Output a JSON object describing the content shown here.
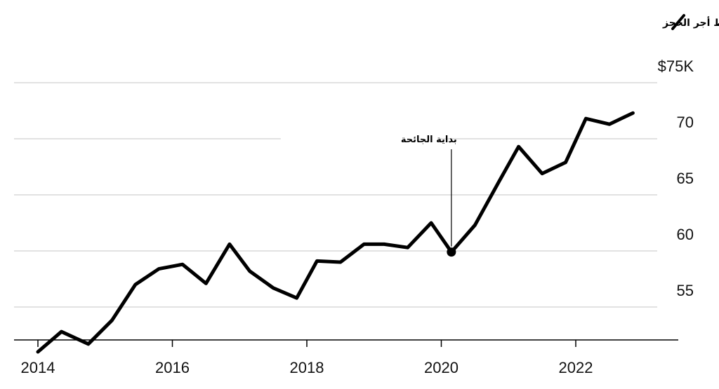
{
  "chart_data": {
    "type": "line",
    "legend": {
      "label": "متوسط أجر الحجز",
      "placement": "top-right"
    },
    "series": [
      {
        "name": "متوسط أجر الحجز",
        "points": [
          [
            2014.0,
            51.0
          ],
          [
            2014.35,
            52.8
          ],
          [
            2014.75,
            51.7
          ],
          [
            2015.1,
            53.8
          ],
          [
            2015.45,
            57.0
          ],
          [
            2015.8,
            58.4
          ],
          [
            2016.15,
            58.8
          ],
          [
            2016.5,
            57.1
          ],
          [
            2016.85,
            60.6
          ],
          [
            2017.15,
            58.2
          ],
          [
            2017.5,
            56.7
          ],
          [
            2017.85,
            55.8
          ],
          [
            2018.15,
            59.1
          ],
          [
            2018.5,
            59.0
          ],
          [
            2018.85,
            60.6
          ],
          [
            2019.15,
            60.6
          ],
          [
            2019.5,
            60.3
          ],
          [
            2019.85,
            62.5
          ],
          [
            2020.15,
            59.9
          ],
          [
            2020.5,
            62.3
          ],
          [
            2020.85,
            66.1
          ],
          [
            2021.15,
            69.3
          ],
          [
            2021.5,
            66.9
          ],
          [
            2021.85,
            67.9
          ],
          [
            2022.15,
            71.8
          ],
          [
            2022.5,
            71.3
          ],
          [
            2022.85,
            72.3
          ]
        ],
        "color": "#000000"
      }
    ],
    "marker": {
      "x": 2020.15,
      "y": 59.9
    },
    "annotation": {
      "text": "بداية الجائحة",
      "x": 2020.15
    },
    "y_ticks": [
      "$75K",
      "70",
      "65",
      "60",
      "55"
    ],
    "y_tick_values": [
      75,
      70,
      65,
      60,
      55
    ],
    "x_ticks": [
      "2014",
      "2016",
      "2018",
      "2020",
      "2022"
    ],
    "x_tick_values": [
      2014,
      2016,
      2018,
      2020,
      2022
    ],
    "xlim": [
      2013.65,
      2023.1
    ],
    "ylim": [
      48.0,
      77.0
    ],
    "grid": true,
    "colors": {
      "line": "#000000",
      "grid": "#d9d9d9",
      "axis": "#000000"
    }
  }
}
